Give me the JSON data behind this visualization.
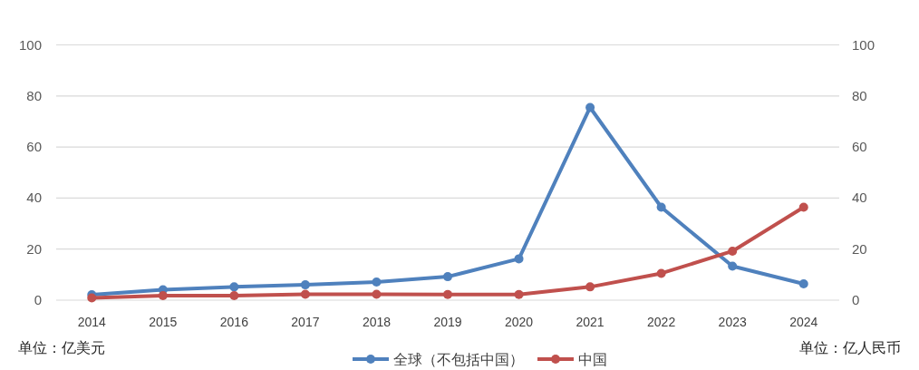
{
  "chart_data": {
    "type": "line",
    "categories": [
      "2014",
      "2015",
      "2016",
      "2017",
      "2018",
      "2019",
      "2020",
      "2021",
      "2022",
      "2023",
      "2024"
    ],
    "series": [
      {
        "name": "全球（不包括中国）",
        "color": "#4f81bd",
        "values": [
          2.1,
          4.1,
          5.2,
          6.0,
          7.1,
          9.2,
          16.2,
          75.5,
          36.4,
          13.3,
          6.4
        ]
      },
      {
        "name": "中国",
        "color": "#c0504d",
        "axis": "y2",
        "values": [
          0.9,
          1.8,
          1.8,
          2.3,
          2.3,
          2.2,
          2.2,
          5.2,
          10.5,
          19.2,
          36.4
        ]
      }
    ],
    "ylim": [
      0,
      100
    ],
    "yticks": [
      0,
      20,
      40,
      60,
      80,
      100
    ],
    "y2lim": [
      0,
      100
    ],
    "y2ticks": [
      0,
      20,
      40,
      60,
      80,
      100
    ],
    "ylabel": "单位：亿美元",
    "y2label": "单位：亿人民币",
    "grid": "y",
    "legend": "bottom",
    "marker": "circle",
    "line_style": "solid"
  }
}
